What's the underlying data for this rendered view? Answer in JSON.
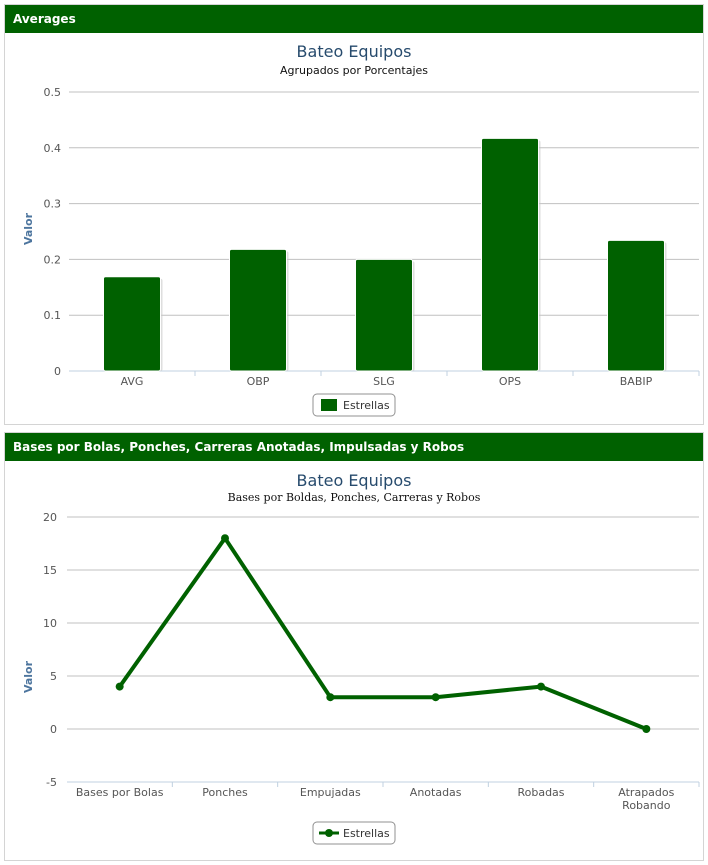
{
  "panels": [
    {
      "header": "Averages"
    },
    {
      "header": "Bases por Bolas, Ponches, Carreras Anotadas, Impulsadas y Robos"
    }
  ],
  "chart_data": [
    {
      "type": "bar",
      "title": "Bateo Equipos",
      "subtitle": "Agrupados por Porcentajes",
      "ylabel": "Valor",
      "xlabel": "",
      "categories": [
        "AVG",
        "OBP",
        "SLG",
        "OPS",
        "BABIP"
      ],
      "series": [
        {
          "name": "Estrellas",
          "values": [
            0.169,
            0.218,
            0.2,
            0.417,
            0.234
          ]
        }
      ],
      "ylim": [
        0,
        0.5
      ],
      "yticks": [
        "0",
        "0.1",
        "0.2",
        "0.3",
        "0.4",
        "0.5"
      ],
      "grid": true,
      "legend": "bottom-center",
      "color": "#006100"
    },
    {
      "type": "line",
      "title": "Bateo Equipos",
      "subtitle": "Bases por Boldas, Ponches, Carreras y Robos",
      "ylabel": "Valor",
      "xlabel": "",
      "categories": [
        "Bases por Bolas",
        "Ponches",
        "Empujadas",
        "Anotadas",
        "Robadas",
        "Atrapados Robando"
      ],
      "series": [
        {
          "name": "Estrellas",
          "values": [
            4,
            18,
            3,
            3,
            4,
            0
          ]
        }
      ],
      "ylim": [
        -5,
        20
      ],
      "yticks": [
        "-5",
        "0",
        "5",
        "10",
        "15",
        "20"
      ],
      "grid": true,
      "legend": "bottom-center",
      "color": "#006100"
    }
  ]
}
